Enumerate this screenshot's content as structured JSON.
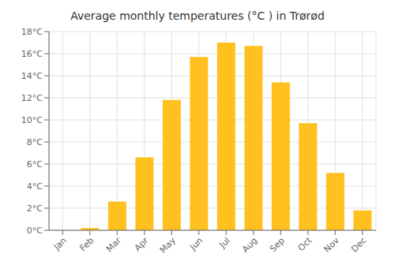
{
  "chart_data": {
    "type": "bar",
    "title": "Average monthly temperatures (°C ) in Trørød",
    "categories": [
      "Jan",
      "Feb",
      "Mar",
      "Apr",
      "May",
      "Jun",
      "Jul",
      "Aug",
      "Sep",
      "Oct",
      "Nov",
      "Dec"
    ],
    "values": [
      0.0,
      0.2,
      2.6,
      6.6,
      11.8,
      15.7,
      17.0,
      16.7,
      13.4,
      9.7,
      5.2,
      1.8
    ],
    "color": "#FFC020",
    "ylim": [
      0,
      18
    ],
    "yticks": [
      {
        "value": 0,
        "label": "0°C"
      },
      {
        "value": 2,
        "label": "2°C"
      },
      {
        "value": 4,
        "label": "4°C"
      },
      {
        "value": 6,
        "label": "6°C"
      },
      {
        "value": 8,
        "label": "8°C"
      },
      {
        "value": 10,
        "label": "10°C"
      },
      {
        "value": 12,
        "label": "12°C"
      },
      {
        "value": 14,
        "label": "14°C"
      },
      {
        "value": 16,
        "label": "16°C"
      },
      {
        "value": 18,
        "label": "18°C"
      }
    ],
    "grid": true
  }
}
